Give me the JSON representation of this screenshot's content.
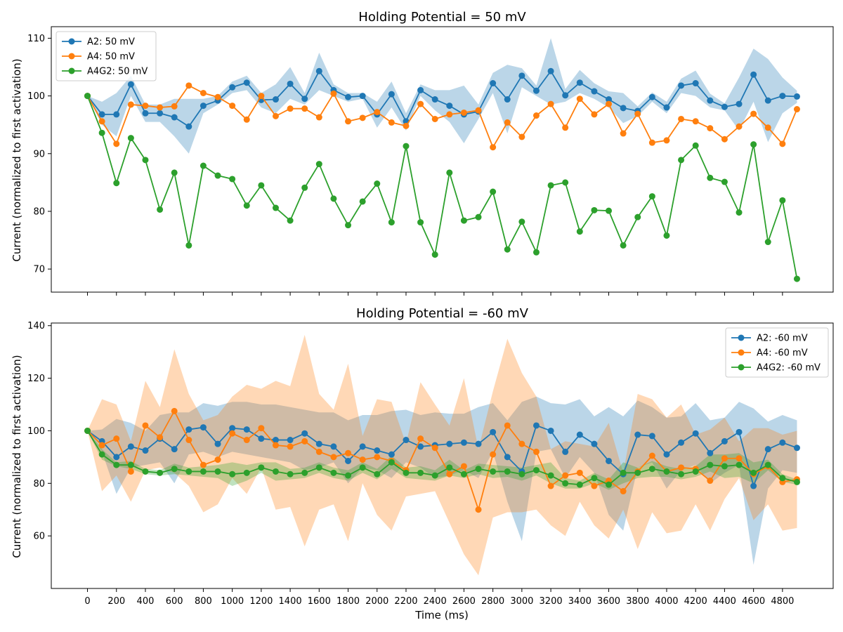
{
  "figure": {
    "xlabel": "Time (ms)",
    "ylabel": "Current (normalized to first activation)"
  },
  "colors": {
    "A2": "#1f77b4",
    "A4": "#ff7f0e",
    "A4G2": "#2ca02c"
  },
  "chart_data": [
    {
      "type": "line",
      "title": "Holding Potential = 50 mV",
      "xlabel": "",
      "ylabel": "Current (normalized to first activation)",
      "xlim": [
        -250,
        5150
      ],
      "ylim": [
        66,
        112
      ],
      "x_ticks": [
        0,
        200,
        400,
        600,
        800,
        1000,
        1200,
        1400,
        1600,
        1800,
        2000,
        2200,
        2400,
        2600,
        2800,
        3000,
        3200,
        3400,
        3600,
        3800,
        4000,
        4200,
        4400,
        4600,
        4800
      ],
      "y_ticks": [
        70,
        80,
        90,
        100,
        110
      ],
      "legend": "upper-left",
      "x": [
        0,
        100,
        200,
        300,
        400,
        500,
        600,
        700,
        800,
        900,
        1000,
        1100,
        1200,
        1300,
        1400,
        1500,
        1600,
        1700,
        1800,
        1900,
        2000,
        2100,
        2200,
        2300,
        2400,
        2500,
        2600,
        2700,
        2800,
        2900,
        3000,
        3100,
        3200,
        3300,
        3400,
        3500,
        3600,
        3700,
        3800,
        3900,
        4000,
        4100,
        4200,
        4300,
        4400,
        4500,
        4600,
        4700,
        4800,
        4900
      ],
      "series": [
        {
          "name": "A2: 50 mV",
          "color": "#1f77b4",
          "values": [
            100,
            96.8,
            96.8,
            102,
            97,
            97,
            96.3,
            94.7,
            98.3,
            99.2,
            101.5,
            102.3,
            99.3,
            99.4,
            102.1,
            99.5,
            104.3,
            101,
            99.8,
            100,
            96.8,
            100.3,
            95.6,
            101,
            99.4,
            98.3,
            96.8,
            97.3,
            102.2,
            99.4,
            103.5,
            100.9,
            104.3,
            100.1,
            102.3,
            100.8,
            99.4,
            97.9,
            97.4,
            99.8,
            98,
            101.8,
            102.2,
            99.2,
            98.1,
            98.6,
            103.7,
            99.2,
            100,
            99.9
          ],
          "band_lower": [
            100,
            95,
            93,
            100,
            95.5,
            95.5,
            93,
            90,
            97,
            98.5,
            100.5,
            101,
            98,
            97,
            99.5,
            98.5,
            101,
            100,
            99,
            99.5,
            94.5,
            98,
            94,
            100,
            97.5,
            95.5,
            91.8,
            96,
            100.5,
            93.5,
            101.5,
            100,
            98.5,
            99,
            100.5,
            99.5,
            98,
            95.3,
            96.5,
            99,
            97,
            100.5,
            100,
            98,
            97.5,
            94,
            99,
            92,
            97,
            98.8
          ],
          "band_upper": [
            100,
            99,
            100.5,
            103.5,
            98.5,
            98.5,
            99.5,
            99.5,
            99.5,
            100,
            102.5,
            103.5,
            100.5,
            102,
            105,
            100.5,
            107.5,
            102,
            100.5,
            100.5,
            99,
            102.5,
            97,
            102,
            101,
            101,
            101.8,
            98.5,
            104,
            105.4,
            104.8,
            101.8,
            110,
            101.2,
            104.5,
            102.2,
            100.8,
            100.5,
            98.2,
            100.6,
            99,
            103,
            104.4,
            100.4,
            98.7,
            103.2,
            108.2,
            106.4,
            103.2,
            100.9
          ]
        },
        {
          "name": "A4: 50 mV",
          "color": "#ff7f0e",
          "values": [
            100,
            95.6,
            91.7,
            98.5,
            98.3,
            98,
            98.2,
            101.8,
            100.5,
            99.8,
            98.3,
            95.9,
            100,
            96.5,
            97.8,
            97.8,
            96.3,
            100.4,
            95.6,
            96.2,
            97.2,
            95.4,
            94.8,
            98.6,
            96,
            96.8,
            97.1,
            97.5,
            91.1,
            95.4,
            92.9,
            96.6,
            98.6,
            94.5,
            99.5,
            96.8,
            98.6,
            93.5,
            96.9,
            91.9,
            92.3,
            96,
            95.6,
            94.4,
            92.5,
            94.7,
            96.9,
            94.5,
            91.7,
            97.7
          ]
        },
        {
          "name": "A4G2: 50 mV",
          "color": "#2ca02c",
          "values": [
            100,
            93.6,
            84.9,
            92.7,
            88.9,
            80.3,
            86.7,
            74.1,
            87.9,
            86.2,
            85.6,
            81,
            84.5,
            80.6,
            78.4,
            84.1,
            88.2,
            82.2,
            77.6,
            81.7,
            84.8,
            78.1,
            91.3,
            78.1,
            72.5,
            86.7,
            78.4,
            79,
            83.4,
            73.4,
            78.2,
            72.9,
            84.5,
            85,
            76.5,
            80.2,
            80.1,
            74.1,
            79,
            82.6,
            75.8,
            88.9,
            91.4,
            85.8,
            85.1,
            79.8,
            91.6,
            74.7,
            81.9,
            68.3
          ]
        }
      ]
    },
    {
      "type": "line",
      "title": "Holding Potential = -60 mV",
      "xlabel": "Time (ms)",
      "ylabel": "Current (normalized to first activation)",
      "xlim": [
        -250,
        5150
      ],
      "ylim": [
        40,
        141
      ],
      "x_ticks": [
        0,
        200,
        400,
        600,
        800,
        1000,
        1200,
        1400,
        1600,
        1800,
        2000,
        2200,
        2400,
        2600,
        2800,
        3000,
        3200,
        3400,
        3600,
        3800,
        4000,
        4200,
        4400,
        4600,
        4800
      ],
      "y_ticks": [
        60,
        80,
        100,
        120,
        140
      ],
      "legend": "upper-right",
      "x": [
        0,
        100,
        200,
        300,
        400,
        500,
        600,
        700,
        800,
        900,
        1000,
        1100,
        1200,
        1300,
        1400,
        1500,
        1600,
        1700,
        1800,
        1900,
        2000,
        2100,
        2200,
        2300,
        2400,
        2500,
        2600,
        2700,
        2800,
        2900,
        3000,
        3100,
        3200,
        3300,
        3400,
        3500,
        3600,
        3700,
        3800,
        3900,
        4000,
        4100,
        4200,
        4300,
        4400,
        4500,
        4600,
        4700,
        4800,
        4900
      ],
      "series": [
        {
          "name": "A2: -60 mV",
          "color": "#1f77b4",
          "values": [
            100,
            96,
            90,
            94,
            92.5,
            97,
            93,
            100.5,
            101.3,
            95,
            101,
            100.5,
            97,
            96.5,
            96.5,
            99,
            95,
            94,
            88.5,
            94,
            92.5,
            91,
            96.5,
            94,
            94.5,
            95,
            95.5,
            95,
            99.5,
            90,
            84.5,
            102,
            100,
            92,
            98.5,
            95,
            88.5,
            83.5,
            98.5,
            98,
            91,
            95.5,
            99,
            91.5,
            96,
            99.5,
            79,
            93,
            95.5,
            93.5
          ],
          "band_lower": [
            100,
            92,
            76,
            86,
            87,
            88,
            80,
            91,
            92,
            90,
            92,
            91,
            90,
            89,
            88,
            85,
            86,
            88,
            80,
            86,
            85,
            82,
            88,
            86,
            82,
            83,
            85,
            82,
            92,
            73,
            58,
            92,
            93,
            82,
            90,
            84,
            68,
            62,
            86,
            88,
            78,
            85,
            87,
            80,
            84,
            87,
            49,
            78,
            85,
            84
          ],
          "band_upper": [
            100,
            100.5,
            104.5,
            103,
            100,
            106,
            107,
            107,
            110.5,
            109.5,
            111,
            111,
            110,
            110,
            109,
            108,
            107,
            107,
            104,
            106,
            106,
            107.5,
            108,
            106,
            107,
            106.5,
            106.5,
            109,
            110.5,
            104,
            111,
            113,
            110.5,
            110,
            112,
            105.5,
            109,
            105.5,
            111.5,
            109,
            105,
            105.5,
            110.5,
            104,
            105,
            111,
            108.5,
            103.5,
            106,
            104
          ]
        },
        {
          "name": "A4: -60 mV",
          "color": "#ff7f0e",
          "values": [
            100,
            94.5,
            97,
            84.5,
            102,
            97.5,
            107.5,
            96.5,
            87,
            89,
            99,
            96.5,
            101,
            94.5,
            94,
            96,
            92,
            90,
            91.5,
            89,
            90,
            88.5,
            85,
            97,
            93.5,
            83.5,
            86.5,
            70,
            91,
            102,
            95,
            92,
            79,
            83,
            84,
            79,
            81,
            77,
            84.5,
            90.5,
            84.5,
            86,
            85.5,
            81,
            89.5,
            89.5,
            83.5,
            86.5,
            80.5,
            81.5
          ],
          "band_lower": [
            100,
            77,
            83,
            73,
            85,
            86,
            84,
            79,
            69,
            72,
            82,
            76,
            86,
            70,
            71,
            56,
            70,
            72,
            58,
            80,
            68,
            62,
            75,
            76,
            77,
            65,
            53,
            45,
            67,
            69,
            69,
            70,
            64,
            60,
            73,
            64,
            59,
            70,
            55,
            69,
            61,
            62,
            72,
            62,
            74,
            82,
            66,
            72,
            62,
            63
          ],
          "band_upper": [
            100,
            112,
            110,
            96,
            119,
            109,
            131,
            114,
            104,
            106,
            113,
            117.5,
            116,
            119,
            117,
            136.5,
            114,
            108,
            125.5,
            98,
            112,
            111,
            95,
            118.5,
            110,
            102,
            120,
            93,
            115,
            135,
            122,
            113,
            93,
            96,
            95,
            94,
            103,
            84,
            114,
            112,
            105,
            110,
            98.5,
            100.5,
            105,
            96,
            101,
            101,
            98.5,
            100
          ]
        },
        {
          "name": "A4G2: -60 mV",
          "color": "#2ca02c",
          "values": [
            100,
            91,
            87,
            87,
            84.5,
            84,
            85.5,
            84.5,
            84.5,
            84.5,
            83.5,
            84,
            86,
            84.5,
            83.5,
            84,
            86,
            84,
            83,
            86,
            83.5,
            88,
            84,
            84,
            83,
            86,
            83.5,
            85.5,
            84.5,
            84.5,
            83.5,
            85,
            83,
            80,
            79.5,
            82,
            79.5,
            84,
            84,
            85.5,
            84.5,
            83.5,
            84.5,
            87,
            86.5,
            87,
            84,
            87,
            82,
            80.5
          ],
          "band_lower": [
            100,
            89,
            86.5,
            85.5,
            83.5,
            83,
            83.5,
            83,
            82.5,
            82,
            79,
            81,
            84,
            81,
            81.5,
            82,
            84,
            82,
            81,
            84,
            81.5,
            85.5,
            82,
            81.5,
            81,
            83,
            82,
            83.5,
            82,
            82.5,
            81,
            83,
            80,
            78,
            78,
            80,
            77.5,
            80,
            82,
            82.5,
            82.5,
            81.5,
            82.5,
            84.5,
            82,
            82.5,
            80,
            85,
            80.5,
            79.5
          ],
          "band_upper": [
            100,
            93,
            88,
            88.5,
            85.5,
            85,
            87.5,
            86,
            86.5,
            87,
            88,
            87,
            88,
            88,
            85.5,
            86,
            88,
            86,
            85,
            88,
            85.5,
            90.5,
            86,
            86.5,
            85,
            89,
            85,
            87.5,
            87,
            86.5,
            86,
            87,
            88,
            82,
            81,
            84,
            81.5,
            88,
            86,
            88.5,
            86.5,
            85.5,
            86.5,
            91,
            91,
            91.5,
            88,
            89,
            83.5,
            81.5
          ]
        }
      ]
    }
  ]
}
